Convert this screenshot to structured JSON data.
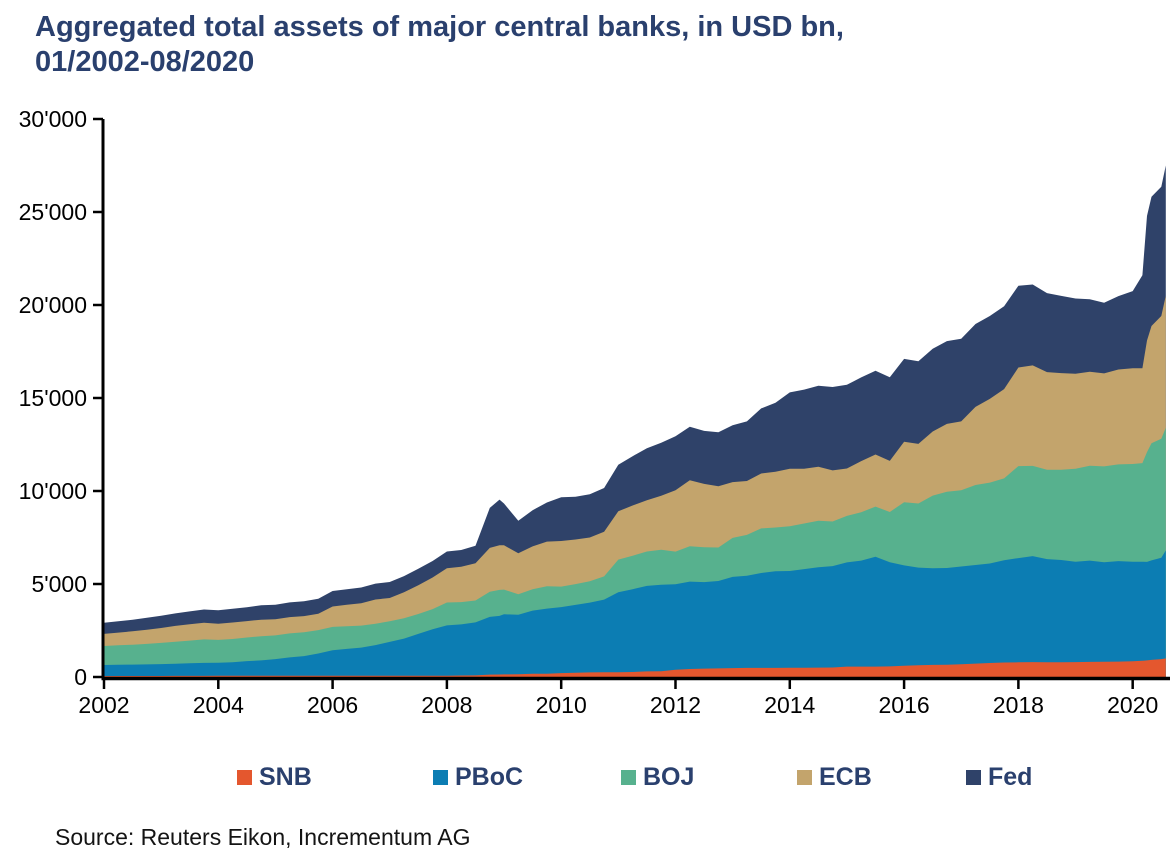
{
  "title": {
    "line1": "Aggregated total assets of major central banks, in USD bn,",
    "line2": "01/2002-08/2020"
  },
  "source": "Source: Reuters Eikon, Incrementum AG",
  "colors": {
    "snb": "#e4572e",
    "pboc": "#0c7db3",
    "boj": "#57b18e",
    "ecb": "#c3a46c",
    "fed": "#2f4269",
    "heading_text": "#2a406e",
    "axis": "#000000",
    "tick_label": "#000000"
  },
  "legend": [
    {
      "label": "SNB",
      "color": "#e4572e"
    },
    {
      "label": "PBoC",
      "color": "#0c7db3"
    },
    {
      "label": "BOJ",
      "color": "#57b18e"
    },
    {
      "label": "ECB",
      "color": "#c3a46c"
    },
    {
      "label": "Fed",
      "color": "#2f4269"
    }
  ],
  "chart_data": {
    "type": "area",
    "stacked": true,
    "title": "Aggregated total assets of major central banks, in USD bn, 01/2002-08/2020",
    "xlabel": "",
    "ylabel": "",
    "units": "USD bn",
    "grid": false,
    "legend_position": "bottom",
    "xlim": [
      2002,
      2020.583
    ],
    "ylim": [
      0,
      30000
    ],
    "x_ticks": [
      {
        "year": 2002,
        "label": "2002"
      },
      {
        "year": 2004,
        "label": "2004"
      },
      {
        "year": 2006,
        "label": "2006"
      },
      {
        "year": 2008,
        "label": "2008"
      },
      {
        "year": 2010,
        "label": "2010"
      },
      {
        "year": 2012,
        "label": "2012"
      },
      {
        "year": 2014,
        "label": "2014"
      },
      {
        "year": 2016,
        "label": "2016"
      },
      {
        "year": 2018,
        "label": "2018"
      },
      {
        "year": 2020,
        "label": "2020"
      }
    ],
    "y_ticks": [
      {
        "value": 0,
        "label": "0"
      },
      {
        "value": 5000,
        "label": "5'000"
      },
      {
        "value": 10000,
        "label": "10'000"
      },
      {
        "value": 15000,
        "label": "15'000"
      },
      {
        "value": 20000,
        "label": "20'000"
      },
      {
        "value": 25000,
        "label": "25'000"
      },
      {
        "value": 30000,
        "label": "30'000"
      }
    ],
    "x_years": [
      2002,
      2002.25,
      2002.5,
      2002.75,
      2003,
      2003.25,
      2003.5,
      2003.75,
      2004,
      2004.25,
      2004.5,
      2004.75,
      2005,
      2005.25,
      2005.5,
      2005.75,
      2006,
      2006.25,
      2006.5,
      2006.75,
      2007,
      2007.25,
      2007.5,
      2007.75,
      2008,
      2008.25,
      2008.5,
      2008.75,
      2008.92,
      2009,
      2009.25,
      2009.5,
      2009.75,
      2010,
      2010.25,
      2010.5,
      2010.75,
      2011,
      2011.25,
      2011.5,
      2011.75,
      2012,
      2012.25,
      2012.5,
      2012.75,
      2013,
      2013.25,
      2013.5,
      2013.75,
      2014,
      2014.25,
      2014.5,
      2014.75,
      2015,
      2015.25,
      2015.5,
      2015.75,
      2016,
      2016.25,
      2016.5,
      2016.75,
      2017,
      2017.25,
      2017.5,
      2017.75,
      2018,
      2018.25,
      2018.5,
      2018.75,
      2019,
      2019.25,
      2019.5,
      2019.75,
      2020,
      2020.17,
      2020.25,
      2020.33,
      2020.5,
      2020.58
    ],
    "series": [
      {
        "name": "SNB",
        "color": "#e4572e",
        "values": [
          50,
          52,
          54,
          55,
          55,
          57,
          58,
          60,
          62,
          62,
          63,
          63,
          64,
          63,
          63,
          62,
          62,
          63,
          63,
          64,
          65,
          66,
          67,
          69,
          72,
          78,
          85,
          130,
          135,
          140,
          150,
          170,
          180,
          210,
          225,
          250,
          260,
          260,
          270,
          300,
          310,
          390,
          430,
          450,
          460,
          480,
          490,
          490,
          490,
          500,
          500,
          505,
          510,
          560,
          560,
          560,
          570,
          600,
          630,
          650,
          660,
          690,
          720,
          750,
          780,
          790,
          800,
          790,
          790,
          800,
          810,
          820,
          830,
          850,
          870,
          890,
          920,
          960,
          1000
        ]
      },
      {
        "name": "PBoC",
        "color": "#0c7db3",
        "values": [
          595,
          605,
          615,
          625,
          640,
          660,
          680,
          700,
          700,
          730,
          790,
          830,
          900,
          990,
          1060,
          1200,
          1380,
          1450,
          1520,
          1650,
          1820,
          2000,
          2250,
          2500,
          2700,
          2750,
          2850,
          3100,
          3150,
          3230,
          3200,
          3400,
          3500,
          3550,
          3650,
          3750,
          3900,
          4300,
          4450,
          4600,
          4650,
          4600,
          4700,
          4650,
          4700,
          4900,
          4950,
          5100,
          5200,
          5200,
          5300,
          5400,
          5450,
          5600,
          5700,
          5900,
          5600,
          5400,
          5250,
          5200,
          5200,
          5250,
          5300,
          5350,
          5500,
          5600,
          5700,
          5550,
          5500,
          5400,
          5450,
          5350,
          5400,
          5350,
          5330,
          5300,
          5350,
          5450,
          5800
        ]
      },
      {
        "name": "BOJ",
        "color": "#57b18e",
        "values": [
          1020,
          1050,
          1070,
          1100,
          1140,
          1180,
          1220,
          1260,
          1235,
          1250,
          1270,
          1300,
          1270,
          1290,
          1280,
          1260,
          1250,
          1220,
          1180,
          1150,
          1110,
          1090,
          1070,
          1080,
          1235,
          1200,
          1180,
          1350,
          1400,
          1330,
          1100,
          1150,
          1200,
          1100,
          1120,
          1150,
          1250,
          1750,
          1800,
          1850,
          1880,
          1750,
          1900,
          1880,
          1800,
          2100,
          2200,
          2400,
          2350,
          2400,
          2450,
          2500,
          2400,
          2500,
          2600,
          2700,
          2700,
          3400,
          3450,
          3900,
          4100,
          4100,
          4300,
          4350,
          4400,
          4950,
          4850,
          4800,
          4850,
          5000,
          5100,
          5150,
          5200,
          5250,
          5300,
          5900,
          6300,
          6400,
          6600
        ]
      },
      {
        "name": "ECB",
        "color": "#c3a46c",
        "values": [
          650,
          680,
          720,
          760,
          800,
          850,
          880,
          900,
          870,
          890,
          880,
          890,
          870,
          880,
          870,
          880,
          1100,
          1150,
          1200,
          1300,
          1250,
          1400,
          1550,
          1700,
          1840,
          1900,
          2000,
          2360,
          2400,
          2380,
          2200,
          2300,
          2400,
          2450,
          2400,
          2350,
          2400,
          2600,
          2700,
          2750,
          2900,
          3300,
          3550,
          3400,
          3300,
          3000,
          2900,
          2950,
          3000,
          3100,
          2950,
          2900,
          2750,
          2550,
          2750,
          2800,
          2750,
          3250,
          3200,
          3450,
          3650,
          3700,
          4200,
          4500,
          4800,
          5300,
          5400,
          5250,
          5200,
          5100,
          5050,
          5000,
          5100,
          5150,
          5100,
          6000,
          6300,
          6600,
          7100
        ]
      },
      {
        "name": "Fed",
        "color": "#2f4269",
        "values": [
          600,
          610,
          620,
          650,
          660,
          670,
          690,
          710,
          720,
          740,
          750,
          770,
          780,
          790,
          800,
          810,
          830,
          840,
          850,
          860,
          860,
          870,
          880,
          890,
          900,
          900,
          940,
          2150,
          2450,
          2250,
          1750,
          1950,
          2100,
          2350,
          2300,
          2330,
          2350,
          2500,
          2650,
          2800,
          2850,
          2900,
          2870,
          2850,
          2900,
          3050,
          3200,
          3500,
          3700,
          4100,
          4250,
          4350,
          4480,
          4500,
          4500,
          4500,
          4500,
          4450,
          4450,
          4450,
          4450,
          4450,
          4460,
          4460,
          4450,
          4400,
          4350,
          4250,
          4150,
          4050,
          3900,
          3800,
          3950,
          4150,
          5000,
          6700,
          6950,
          6950,
          7000
        ]
      }
    ]
  }
}
